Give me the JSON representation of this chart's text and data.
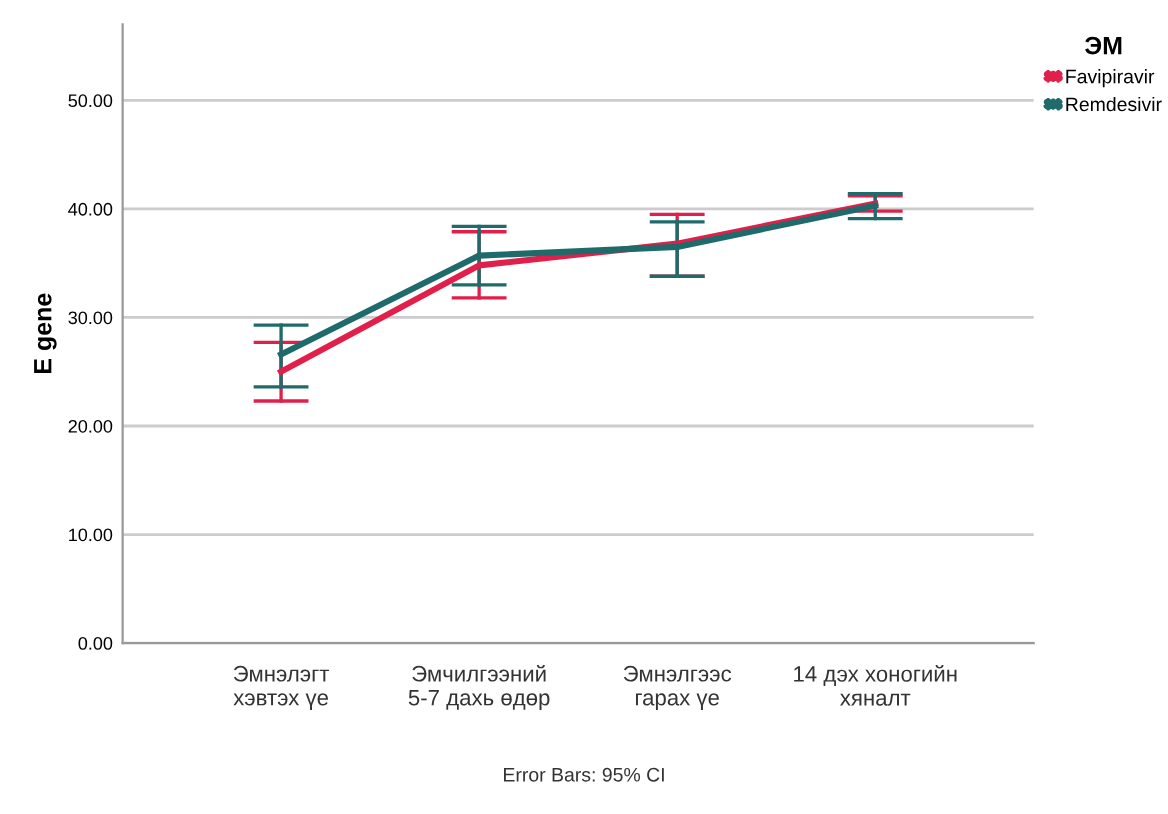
{
  "chart_data": {
    "type": "line",
    "ylabel": "E gene",
    "legend_title": "ЭМ",
    "legend": "right",
    "categories": [
      "Эмнэлэгт\nхэвтэх үе",
      "Эмчилгээний\n5-7 дахь өдөр",
      "Эмнэлгээс\nгарах үе",
      "14 дэх хоногийн\nхяналт"
    ],
    "series": [
      {
        "name": "Favipiravir",
        "color": "#e0204a",
        "values": [
          25.0,
          34.8,
          36.8,
          40.5
        ],
        "errors": [
          [
            22.3,
            27.7
          ],
          [
            31.8,
            37.9
          ],
          [
            33.8,
            39.5
          ],
          [
            39.8,
            41.2
          ]
        ]
      },
      {
        "name": "Remdesivir",
        "color": "#1f6b6b",
        "values": [
          26.6,
          35.7,
          36.5,
          40.3
        ],
        "errors": [
          [
            23.6,
            29.3
          ],
          [
            33.0,
            38.4
          ],
          [
            33.8,
            38.8
          ],
          [
            39.1,
            41.4
          ]
        ]
      }
    ],
    "ylim": [
      0,
      57
    ],
    "yticks": [
      {
        "value": 0,
        "label": "0.00"
      },
      {
        "value": 10,
        "label": "10.00"
      },
      {
        "value": 20,
        "label": "20.00"
      },
      {
        "value": 30,
        "label": "30.00"
      },
      {
        "value": 40,
        "label": "40.00"
      },
      {
        "value": 50,
        "label": "50.00"
      }
    ],
    "grid": "y",
    "marker": "none",
    "line_style": "solid",
    "annotations": [
      "Error Bars: 95% CI"
    ]
  }
}
